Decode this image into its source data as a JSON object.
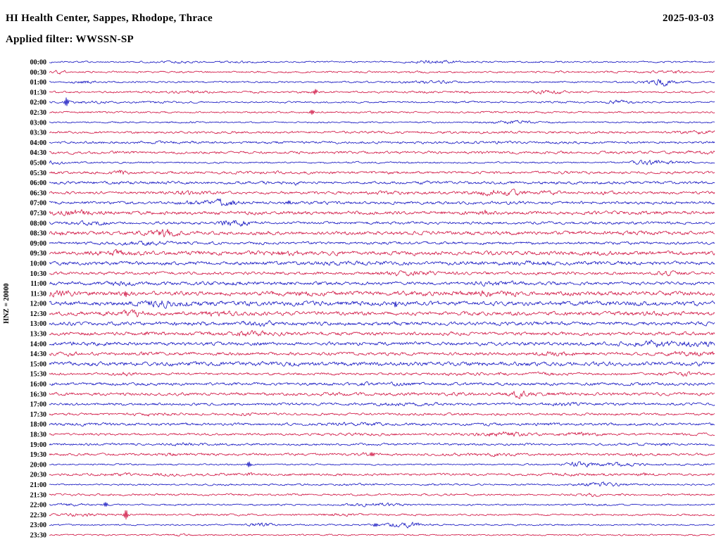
{
  "chart_data": {
    "type": "line",
    "subtype": "helicorder-seismogram",
    "title": "HI Health Center, Sappes, Rhodope, Thrace",
    "date": "2025-03-03",
    "filter_label": "Applied filter: WWSSN-SP",
    "channel_label": "HNZ = 20000",
    "row_interval_minutes": 30,
    "grid": false,
    "legend": "none",
    "colors": {
      "even_rows": "#0000bb",
      "odd_rows": "#cc0033"
    },
    "rows": [
      {
        "label": "00:00",
        "color": "#0000bb"
      },
      {
        "label": "00:30",
        "color": "#cc0033"
      },
      {
        "label": "01:00",
        "color": "#0000bb"
      },
      {
        "label": "01:30",
        "color": "#cc0033"
      },
      {
        "label": "02:00",
        "color": "#0000bb"
      },
      {
        "label": "02:30",
        "color": "#cc0033"
      },
      {
        "label": "03:00",
        "color": "#0000bb"
      },
      {
        "label": "03:30",
        "color": "#cc0033"
      },
      {
        "label": "04:00",
        "color": "#0000bb"
      },
      {
        "label": "04:30",
        "color": "#cc0033"
      },
      {
        "label": "05:00",
        "color": "#0000bb"
      },
      {
        "label": "05:30",
        "color": "#cc0033"
      },
      {
        "label": "06:00",
        "color": "#0000bb"
      },
      {
        "label": "06:30",
        "color": "#cc0033"
      },
      {
        "label": "07:00",
        "color": "#0000bb"
      },
      {
        "label": "07:30",
        "color": "#cc0033"
      },
      {
        "label": "08:00",
        "color": "#0000bb"
      },
      {
        "label": "08:30",
        "color": "#cc0033"
      },
      {
        "label": "09:00",
        "color": "#0000bb"
      },
      {
        "label": "09:30",
        "color": "#cc0033"
      },
      {
        "label": "10:00",
        "color": "#0000bb"
      },
      {
        "label": "10:30",
        "color": "#cc0033"
      },
      {
        "label": "11:00",
        "color": "#0000bb"
      },
      {
        "label": "11:30",
        "color": "#cc0033"
      },
      {
        "label": "12:00",
        "color": "#0000bb"
      },
      {
        "label": "12:30",
        "color": "#cc0033"
      },
      {
        "label": "13:00",
        "color": "#0000bb"
      },
      {
        "label": "13:30",
        "color": "#cc0033"
      },
      {
        "label": "14:00",
        "color": "#0000bb"
      },
      {
        "label": "14:30",
        "color": "#cc0033"
      },
      {
        "label": "15:00",
        "color": "#0000bb"
      },
      {
        "label": "15:30",
        "color": "#cc0033"
      },
      {
        "label": "16:00",
        "color": "#0000bb"
      },
      {
        "label": "16:30",
        "color": "#cc0033"
      },
      {
        "label": "17:00",
        "color": "#0000bb"
      },
      {
        "label": "17:30",
        "color": "#cc0033"
      },
      {
        "label": "18:00",
        "color": "#0000bb"
      },
      {
        "label": "18:30",
        "color": "#cc0033"
      },
      {
        "label": "19:00",
        "color": "#0000bb"
      },
      {
        "label": "19:30",
        "color": "#cc0033"
      },
      {
        "label": "20:00",
        "color": "#0000bb"
      },
      {
        "label": "20:30",
        "color": "#cc0033"
      },
      {
        "label": "21:00",
        "color": "#0000bb"
      },
      {
        "label": "21:30",
        "color": "#cc0033"
      },
      {
        "label": "22:00",
        "color": "#0000bb"
      },
      {
        "label": "22:30",
        "color": "#cc0033"
      },
      {
        "label": "23:00",
        "color": "#0000bb"
      },
      {
        "label": "23:30",
        "color": "#cc0033"
      }
    ],
    "noise": {
      "seed": 20250303,
      "base_amplitude": 0.8,
      "burst_amplitude": 2.6,
      "max_bursts_per_row": 7,
      "daytime_peak_row": 24,
      "daytime_width_rows": 13,
      "daytime_gain": 1.3
    },
    "spikes": [
      {
        "row": 3,
        "x": 0.4,
        "amp": 4
      },
      {
        "row": 4,
        "x": 0.026,
        "amp": 7
      },
      {
        "row": 5,
        "x": 0.395,
        "amp": 4
      },
      {
        "row": 14,
        "x": 0.36,
        "amp": 3
      },
      {
        "row": 23,
        "x": 0.115,
        "amp": 5
      },
      {
        "row": 24,
        "x": 0.52,
        "amp": 4
      },
      {
        "row": 39,
        "x": 0.485,
        "amp": 4
      },
      {
        "row": 40,
        "x": 0.3,
        "amp": 4
      },
      {
        "row": 44,
        "x": 0.085,
        "amp": 4
      },
      {
        "row": 45,
        "x": 0.115,
        "amp": 8
      },
      {
        "row": 46,
        "x": 0.49,
        "amp": 3
      }
    ]
  }
}
